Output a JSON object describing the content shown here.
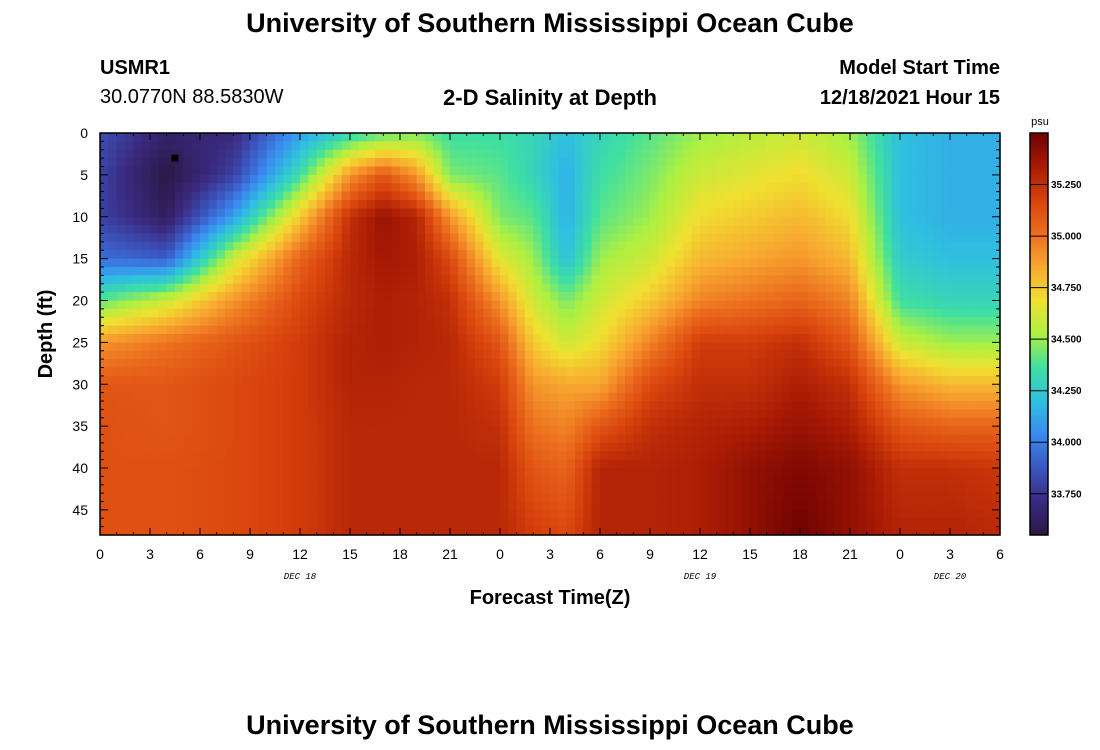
{
  "header": {
    "title": "University of Southern Mississippi Ocean Cube",
    "station": "USMR1",
    "coords": "30.0770N  88.5830W",
    "plot_title": "2-D Salinity at Depth",
    "model_label": "Model Start Time",
    "model_time": "12/18/2021 Hour 15"
  },
  "footer": {
    "title": "University of Southern Mississippi Ocean Cube"
  },
  "chart_data": {
    "type": "heatmap",
    "title": "2-D Salinity at Depth",
    "xlabel": "Forecast Time(Z)",
    "ylabel": "Depth (ft)",
    "x_unit": "hours",
    "xlim": [
      0,
      54
    ],
    "ylim": [
      0,
      48
    ],
    "x_ticks": [
      0,
      3,
      6,
      9,
      12,
      15,
      18,
      21,
      24,
      27,
      30,
      33,
      36,
      39,
      42,
      45,
      48,
      51,
      54
    ],
    "x_tick_labels": [
      "0",
      "3",
      "6",
      "9",
      "12",
      "15",
      "18",
      "21",
      "0",
      "3",
      "6",
      "9",
      "12",
      "15",
      "18",
      "21",
      "0",
      "3",
      "6"
    ],
    "day_labels": [
      {
        "x": 12,
        "label": "DEC 18"
      },
      {
        "x": 36,
        "label": "DEC 19"
      },
      {
        "x": 51,
        "label": "DEC 20"
      }
    ],
    "y_ticks": [
      0,
      5,
      10,
      15,
      20,
      25,
      30,
      35,
      40,
      45
    ],
    "y_tick_labels": [
      "0",
      "5",
      "10",
      "15",
      "20",
      "25",
      "30",
      "35",
      "40",
      "45"
    ],
    "colorbar": {
      "unit": "psu",
      "range": [
        33.55,
        35.5
      ],
      "ticks": [
        33.75,
        34.0,
        34.25,
        34.5,
        34.75,
        35.0,
        35.25
      ],
      "tick_labels": [
        "33.750",
        "34.000",
        "34.250",
        "34.500",
        "34.750",
        "35.000",
        "35.250"
      ],
      "colormap": [
        "#2a1845",
        "#3a2a80",
        "#3b56c0",
        "#3a8af0",
        "#2fc0e0",
        "#3fe0a0",
        "#aef040",
        "#f0e030",
        "#f8a830",
        "#ec6e1e",
        "#d8420c",
        "#a81a04",
        "#6e0202"
      ]
    },
    "marker": {
      "x": 4.5,
      "y": 3
    },
    "profile_depths": [
      0,
      5,
      10,
      15,
      20,
      25,
      30,
      35,
      40,
      48
    ],
    "profiles": [
      {
        "t": 0,
        "s": [
          33.85,
          33.8,
          33.8,
          33.95,
          34.4,
          34.9,
          35.1,
          35.12,
          35.12,
          35.12
        ]
      },
      {
        "t": 4,
        "s": [
          33.65,
          33.55,
          33.62,
          33.9,
          34.6,
          35.0,
          35.1,
          35.1,
          35.12,
          35.12
        ]
      },
      {
        "t": 8,
        "s": [
          33.7,
          33.8,
          34.1,
          34.6,
          34.9,
          35.1,
          35.15,
          35.15,
          35.15,
          35.15
        ]
      },
      {
        "t": 12,
        "s": [
          34.1,
          34.35,
          34.75,
          35.05,
          35.15,
          35.2,
          35.2,
          35.2,
          35.2,
          35.2
        ]
      },
      {
        "t": 15,
        "s": [
          34.3,
          34.9,
          35.25,
          35.28,
          35.28,
          35.3,
          35.3,
          35.28,
          35.28,
          35.28
        ]
      },
      {
        "t": 17,
        "s": [
          34.4,
          35.1,
          35.38,
          35.35,
          35.32,
          35.32,
          35.3,
          35.28,
          35.28,
          35.28
        ]
      },
      {
        "t": 19,
        "s": [
          34.45,
          34.9,
          35.3,
          35.32,
          35.3,
          35.3,
          35.28,
          35.28,
          35.28,
          35.28
        ]
      },
      {
        "t": 21,
        "s": [
          34.35,
          34.45,
          34.9,
          35.15,
          35.25,
          35.28,
          35.28,
          35.28,
          35.28,
          35.28
        ]
      },
      {
        "t": 24,
        "s": [
          34.35,
          34.4,
          34.45,
          34.65,
          34.9,
          35.1,
          35.2,
          35.25,
          35.28,
          35.28
        ]
      },
      {
        "t": 26,
        "s": [
          34.3,
          34.3,
          34.4,
          34.5,
          34.6,
          34.75,
          34.9,
          35.0,
          35.1,
          35.2
        ]
      },
      {
        "t": 28,
        "s": [
          34.2,
          34.15,
          34.15,
          34.2,
          34.45,
          34.6,
          34.85,
          34.95,
          35.05,
          35.15
        ]
      },
      {
        "t": 30,
        "s": [
          34.3,
          34.35,
          34.4,
          34.5,
          34.6,
          34.7,
          34.85,
          35.1,
          35.3,
          35.3
        ]
      },
      {
        "t": 33,
        "s": [
          34.4,
          34.45,
          34.5,
          34.6,
          34.75,
          34.95,
          35.15,
          35.25,
          35.3,
          35.3
        ]
      },
      {
        "t": 36,
        "s": [
          34.5,
          34.6,
          34.7,
          34.8,
          34.95,
          35.2,
          35.25,
          35.3,
          35.32,
          35.32
        ]
      },
      {
        "t": 39,
        "s": [
          34.55,
          34.65,
          34.75,
          34.85,
          35.0,
          35.2,
          35.25,
          35.32,
          35.4,
          35.4
        ]
      },
      {
        "t": 42,
        "s": [
          34.6,
          34.7,
          34.8,
          34.9,
          35.05,
          35.25,
          35.32,
          35.38,
          35.45,
          35.5
        ]
      },
      {
        "t": 45,
        "s": [
          34.5,
          34.6,
          34.7,
          34.8,
          34.95,
          35.1,
          35.25,
          35.32,
          35.4,
          35.4
        ]
      },
      {
        "t": 48,
        "s": [
          34.2,
          34.2,
          34.2,
          34.25,
          34.35,
          34.6,
          34.9,
          35.1,
          35.25,
          35.3
        ]
      },
      {
        "t": 51,
        "s": [
          34.15,
          34.15,
          34.15,
          34.2,
          34.3,
          34.5,
          34.8,
          35.05,
          35.25,
          35.3
        ]
      },
      {
        "t": 54,
        "s": [
          34.15,
          34.15,
          34.15,
          34.2,
          34.3,
          34.5,
          34.8,
          35.05,
          35.22,
          35.28
        ]
      }
    ]
  }
}
